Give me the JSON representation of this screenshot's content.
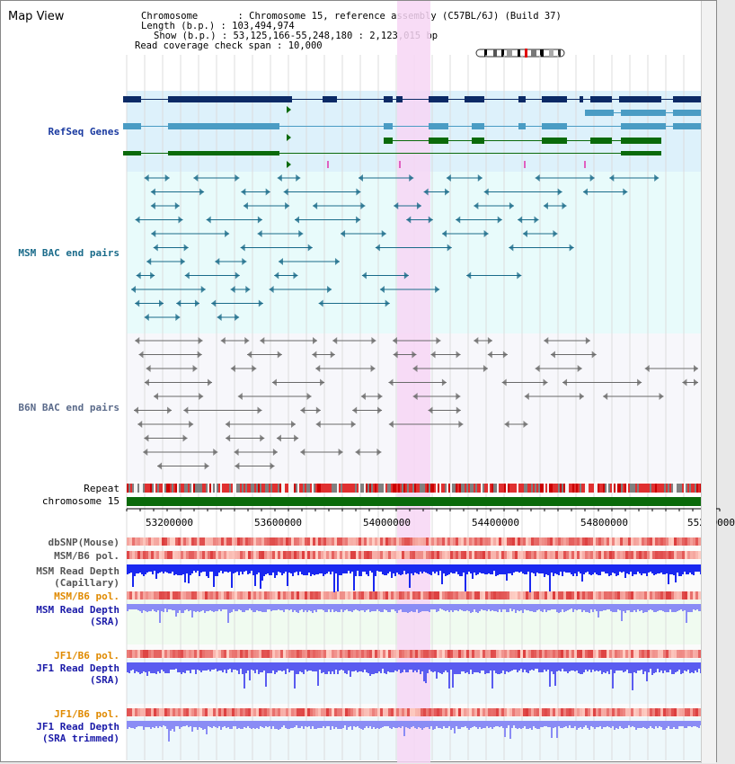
{
  "window": {
    "title": "Map View"
  },
  "header": {
    "chromosome_label": "Chromosome",
    "chromosome_value": "Chromosome 15, reference assembly (C57BL/6J) (Build 37)",
    "length_label": "Length (b.p.)",
    "length_value": "103,494,974",
    "show_label": "Show (b.p.)",
    "show_value": "53,125,166-55,248,180 : 2,123,015 bp",
    "coverage_label": "Read coverage check span",
    "coverage_value": "10,000"
  },
  "tracks": {
    "refseq": "RefSeq Genes",
    "msm_bac": "MSM BAC end pairs",
    "b6n_bac": "B6N BAC end pairs",
    "repeat": "Repeat",
    "chromosome": "chromosome 15",
    "dbsnp": "dbSNP(Mouse)",
    "msm_b6_pol_1": "MSM/B6 pol.",
    "msm_depth_cap_1": "MSM Read Depth",
    "msm_depth_cap_2": "(Capillary)",
    "msm_b6_pol_2": "MSM/B6 pol.",
    "msm_depth_sra_1": "MSM Read Depth",
    "msm_depth_sra_2": "(SRA)",
    "jf1_b6_pol_1": "JF1/B6 pol.",
    "jf1_depth_sra_1": "JF1 Read Depth",
    "jf1_depth_sra_2": "(SRA)",
    "jf1_b6_pol_2": "JF1/B6 pol.",
    "jf1_depth_trim_1": "JF1 Read Depth",
    "jf1_depth_trim_2": "(SRA trimmed)"
  },
  "axis": {
    "ticks": [
      "53200000",
      "53600000",
      "54000000",
      "54400000",
      "54800000",
      "55200000"
    ]
  },
  "colors": {
    "refseq_bg": "#ddf1fb",
    "msm_bg": "#e8fbfb",
    "highlight": "#f7d6f4",
    "gene_dark": "#0b2a66",
    "gene_light": "#4a9cc4",
    "gene_green": "#0a6a0a",
    "bac_teal": "#1a6b8a",
    "bac_gray": "#6a6a6a",
    "chrom_green": "#0a6a0a",
    "depth_blue": "#1a28f0",
    "depth_light": "#8a8cf5",
    "label_blue": "#1a3aa0",
    "label_orange": "#e08a00",
    "label_darkblue": "#1a1aa8"
  }
}
